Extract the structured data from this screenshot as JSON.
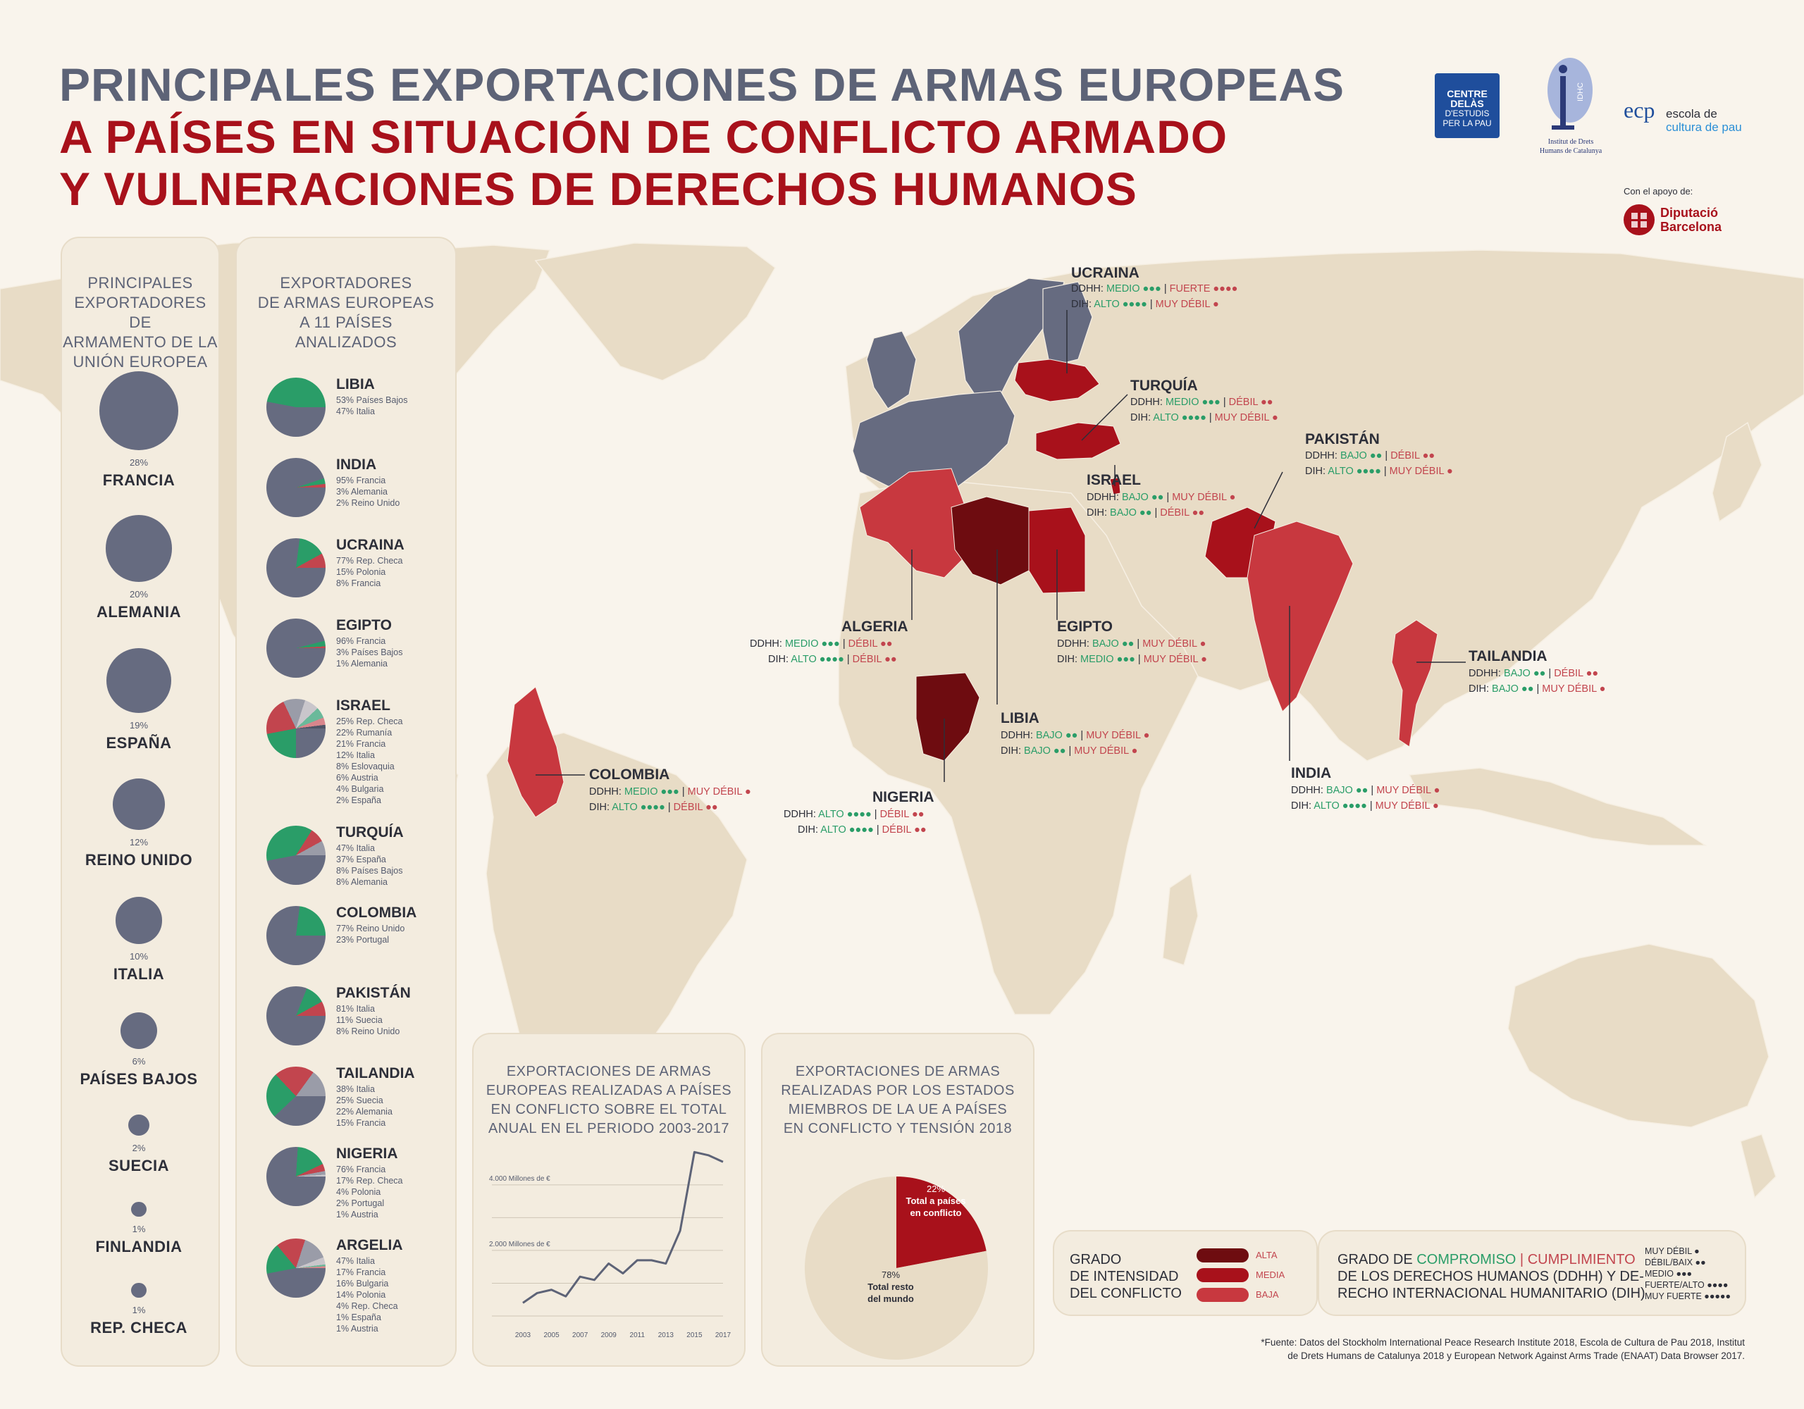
{
  "title": {
    "line1": "PRINCIPALES EXPORTACIONES DE ARMAS EUROPEAS",
    "line2": "A PAÍSES EN SITUACIÓN DE CONFLICTO ARMADO",
    "line3": "Y VULNERACIONES DE DERECHOS HUMANOS"
  },
  "logos": {
    "centre_delas": [
      "CENTRE DELÀS",
      "D'ESTUDIS",
      "PER LA PAU"
    ],
    "idhc": [
      "Institut de Drets",
      "Humans de Catalunya"
    ],
    "idhc_mark": "IDHC",
    "ecp_mark": "ecp",
    "ecp": [
      "escola de",
      "cultura de pau"
    ],
    "support_label": "Con el apoyo de:",
    "diputacio": [
      "Diputació",
      "Barcelona"
    ]
  },
  "exporters_panel": {
    "title": [
      "PRINCIPALES",
      "EXPORTADORES DE",
      "ARMAMENTO DE LA",
      "UNIÓN EUROPEA"
    ],
    "items": [
      {
        "pct": "28%",
        "name": "FRANCIA",
        "value": 28
      },
      {
        "pct": "20%",
        "name": "ALEMANIA",
        "value": 20
      },
      {
        "pct": "19%",
        "name": "ESPAÑA",
        "value": 19
      },
      {
        "pct": "12%",
        "name": "REINO UNIDO",
        "value": 12
      },
      {
        "pct": "10%",
        "name": "ITALIA",
        "value": 10
      },
      {
        "pct": "6%",
        "name": "PAÍSES BAJOS",
        "value": 6
      },
      {
        "pct": "2%",
        "name": "SUECIA",
        "value": 2
      },
      {
        "pct": "1%",
        "name": "FINLANDIA",
        "value": 1
      },
      {
        "pct": "1%",
        "name": "REP. CHECA",
        "value": 1
      }
    ]
  },
  "importers_panel": {
    "title": [
      "EXPORTADORES",
      "DE ARMAS EUROPEAS",
      "A 11 PAÍSES",
      "ANALIZADOS"
    ],
    "items": [
      {
        "name": "LIBIA",
        "lines": [
          "53% Países Bajos",
          "47% Italia"
        ],
        "shares": [
          53,
          47
        ]
      },
      {
        "name": "INDIA",
        "lines": [
          "95% Francia",
          "3% Alemania",
          "2% Reino Unido"
        ],
        "shares": [
          95,
          3,
          2
        ]
      },
      {
        "name": "UCRAINA",
        "lines": [
          "77% Rep. Checa",
          "15% Polonia",
          "8% Francia"
        ],
        "shares": [
          77,
          15,
          8
        ]
      },
      {
        "name": "EGIPTO",
        "lines": [
          "96% Francia",
          "3% Países Bajos",
          "1% Alemania"
        ],
        "shares": [
          96,
          3,
          1
        ]
      },
      {
        "name": "ISRAEL",
        "lines": [
          "25% Rep. Checa",
          "22% Rumanía",
          "21% Francia",
          "12% Italia",
          "8% Eslovaquia",
          "6% Austria",
          "4% Bulgaria",
          "2% España"
        ],
        "shares": [
          25,
          22,
          21,
          12,
          8,
          6,
          4,
          2
        ]
      },
      {
        "name": "TURQUÍA",
        "lines": [
          "47% Italia",
          "37% España",
          "8% Países Bajos",
          "8% Alemania"
        ],
        "shares": [
          47,
          37,
          8,
          8
        ]
      },
      {
        "name": "COLOMBIA",
        "lines": [
          "77% Reino Unido",
          "23% Portugal"
        ],
        "shares": [
          77,
          23
        ]
      },
      {
        "name": "PAKISTÁN",
        "lines": [
          "81% Italia",
          "11% Suecia",
          "8% Reino Unido"
        ],
        "shares": [
          81,
          11,
          8
        ]
      },
      {
        "name": "TAILANDIA",
        "lines": [
          "38% Italia",
          "25% Suecia",
          "22% Alemania",
          "15% Francia"
        ],
        "shares": [
          38,
          25,
          22,
          15
        ]
      },
      {
        "name": "NIGERIA",
        "lines": [
          "76% Francia",
          "17% Rep. Checa",
          "4% Polonia",
          "2% Portugal",
          "1% Austria"
        ],
        "shares": [
          76,
          17,
          4,
          2,
          1
        ]
      },
      {
        "name": "ARGELIA",
        "lines": [
          "47% Italia",
          "17% Francia",
          "16% Bulgaria",
          "14% Polonia",
          "4% Rep. Checa",
          "1% España",
          "1% Austria"
        ],
        "shares": [
          47,
          17,
          16,
          14,
          4,
          1,
          1
        ]
      }
    ]
  },
  "pie_colors": [
    "#666b80",
    "#2a9d68",
    "#c2454e",
    "#9a9ca8",
    "#c9c6cb",
    "#6ab99a",
    "#d9868c",
    "#4f5466"
  ],
  "map_colors": {
    "land": "#e8dcc6",
    "eu": "#666b80",
    "alta": "#6e0c10",
    "media": "#a8111b",
    "baja": "#c8383f"
  },
  "map_labels": [
    {
      "name": "UCRAINA",
      "l1": [
        "DDHH: ",
        "MEDIO ●●●",
        " | ",
        "FUERTE ●●●●"
      ],
      "l2": [
        "DIH: ",
        "ALTO ●●●●",
        " | ",
        "MUY DÉBIL ●"
      ]
    },
    {
      "name": "TURQUÍA",
      "l1": [
        "DDHH: ",
        "MEDIO ●●●",
        " | ",
        "DÉBIL ●●"
      ],
      "l2": [
        "DIH: ",
        "ALTO ●●●●",
        " | ",
        "MUY DÉBIL ●"
      ]
    },
    {
      "name": "PAKISTÁN",
      "l1": [
        "DDHH: ",
        "BAJO ●●",
        " | ",
        "DÉBIL ●●"
      ],
      "l2": [
        "DIH: ",
        "ALTO ●●●●",
        " | ",
        "MUY DÉBIL ●"
      ]
    },
    {
      "name": "ISRAEL",
      "l1": [
        "DDHH: ",
        "BAJO ●●",
        " | ",
        "MUY DÉBIL ●"
      ],
      "l2": [
        "DIH: ",
        "BAJO ●●",
        " | ",
        "DÉBIL ●●"
      ]
    },
    {
      "name": "ALGERIA",
      "l1": [
        "DDHH: ",
        "MEDIO ●●●",
        " | ",
        "DÉBIL ●●"
      ],
      "l2": [
        "DIH: ",
        "ALTO ●●●●",
        " | ",
        "DÉBIL ●●"
      ]
    },
    {
      "name": "EGIPTO",
      "l1": [
        "DDHH: ",
        "BAJO ●●",
        " | ",
        "MUY DÉBIL ●"
      ],
      "l2": [
        "DIH: ",
        "MEDIO ●●●",
        " | ",
        "MUY DÉBIL ●"
      ]
    },
    {
      "name": "TAILANDIA",
      "l1": [
        "DDHH: ",
        "BAJO ●●",
        " | ",
        "DÉBIL ●●"
      ],
      "l2": [
        "DIH: ",
        "BAJO ●●",
        " | ",
        "MUY DÉBIL ●"
      ]
    },
    {
      "name": "LIBIA",
      "l1": [
        "DDHH: ",
        "BAJO ●●",
        " | ",
        "MUY DÉBIL ●"
      ],
      "l2": [
        "DIH: ",
        "BAJO ●●",
        " | ",
        "MUY DÉBIL ●"
      ]
    },
    {
      "name": "COLOMBIA",
      "l1": [
        "DDHH: ",
        "MEDIO ●●●",
        " | ",
        "MUY DÉBIL ●"
      ],
      "l2": [
        "DIH: ",
        "ALTO ●●●●",
        " | ",
        "DÉBIL ●●"
      ]
    },
    {
      "name": "NIGERIA",
      "l1": [
        "DDHH: ",
        "ALTO ●●●●",
        " | ",
        "DÉBIL ●●"
      ],
      "l2": [
        "DIH: ",
        "ALTO ●●●●",
        " | ",
        "DÉBIL ●●"
      ]
    },
    {
      "name": "INDIA",
      "l1": [
        "DDHH: ",
        "BAJO ●●",
        " | ",
        "MUY DÉBIL ●"
      ],
      "l2": [
        "DIH: ",
        "ALTO ●●●●",
        " | ",
        "MUY DÉBIL ●"
      ]
    }
  ],
  "chart_data": [
    {
      "type": "line",
      "title": "EXPORTACIONES DE ARMAS EUROPEAS REALIZADAS A PAÍSES EN CONFLICTO SOBRE EL TOTAL ANUAL EN EL PERIODO 2003-2017",
      "title_lines": [
        "EXPORTACIONES DE ARMAS",
        "EUROPEAS REALIZADAS A PAÍSES",
        "EN CONFLICTO SOBRE EL TOTAL",
        "ANUAL EN EL PERIODO 2003-2017"
      ],
      "x": [
        2003,
        2004,
        2005,
        2006,
        2007,
        2008,
        2009,
        2010,
        2011,
        2012,
        2013,
        2014,
        2015,
        2016,
        2017
      ],
      "x_tick_labels": [
        "2003",
        "2005",
        "2007",
        "2009",
        "2011",
        "2013",
        "2015",
        "2017"
      ],
      "y_tick_labels": [
        "2.000 Millones de €",
        "4.000 Millones de €"
      ],
      "y_ticks": [
        2000,
        4000
      ],
      "series": [
        {
          "values": [
            400,
            700,
            800,
            600,
            1200,
            1100,
            1600,
            1300,
            1700,
            1700,
            1600,
            2600,
            5000,
            4900,
            4700
          ]
        }
      ],
      "ylim": [
        0,
        5200
      ],
      "grid": true
    },
    {
      "type": "pie",
      "title": "EXPORTACIONES DE ARMAS REALIZADAS POR LOS ESTADOS MIEMBROS DE LA UE A PAÍSES EN CONFLICTO Y TENSIÓN 2018",
      "title_lines": [
        "EXPORTACIONES DE ARMAS",
        "REALIZADAS POR LOS ESTADOS",
        "MIEMBROS DE LA UE A PAÍSES",
        "EN CONFLICTO Y TENSIÓN 2018"
      ],
      "slices": [
        {
          "pct": "22%",
          "label_lines": [
            "Total a países",
            "en conflicto"
          ],
          "value": 22,
          "color": "#a8111b"
        },
        {
          "pct": "78%",
          "label_lines": [
            "Total resto",
            "del mundo"
          ],
          "value": 78,
          "color": "#e8dcc6"
        }
      ]
    }
  ],
  "legend_intensity": {
    "title_lines": [
      "GRADO",
      "DE INTENSIDAD",
      "DEL CONFLICTO"
    ],
    "items": [
      {
        "label": "ALTA",
        "color": "#6e0c10"
      },
      {
        "label": "MEDIA",
        "color": "#a8111b"
      },
      {
        "label": "BAJA",
        "color": "#c8383f"
      }
    ]
  },
  "legend_compromise": {
    "t_a": "GRADO DE ",
    "t_b": "COMPROMISO",
    "t_c": " | ",
    "t_d": "CUMPLIMIENTO",
    "t_line2": "DE LOS DERECHOS HUMANOS (DDHH) Y DE-",
    "t_line3": "RECHO INTERNACIONAL HUMANITARIO (DIH)",
    "scale": [
      "MUY DÉBIL ●",
      "DÉBIL/BAIX ●●",
      "MEDIO ●●●",
      "FUERTE/ALTO ●●●●",
      "MUY FUERTE ●●●●●"
    ]
  },
  "source": [
    "*Fuente: Datos del Stockholm International Peace Research Institute 2018, Escola de Cultura de Pau 2018, Institut",
    "de Drets Humans de Catalunya 2018 y European Network Against Arms Trade (ENAAT) Data Browser 2017."
  ]
}
